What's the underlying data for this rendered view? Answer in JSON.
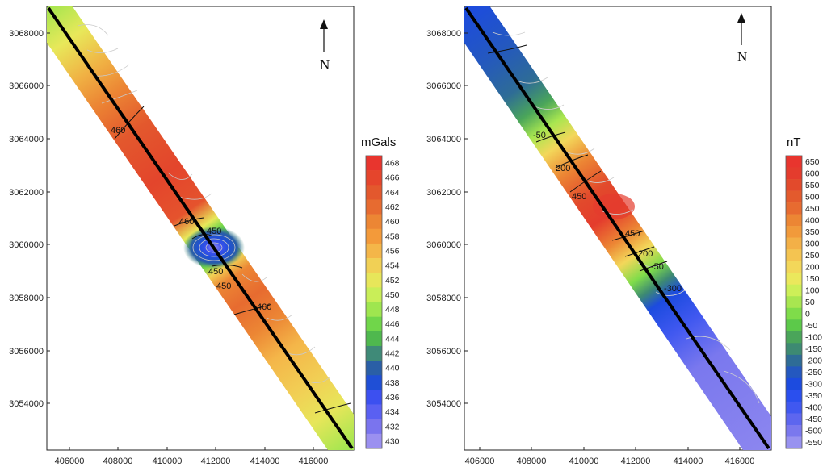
{
  "left_map": {
    "colorbar_unit": "mGals",
    "north_label": "N",
    "x_ticks": [
      "406000",
      "408000",
      "410000",
      "412000",
      "414000",
      "416000"
    ],
    "y_ticks": [
      "3068000",
      "3066000",
      "3064000",
      "3062000",
      "3060000",
      "3058000",
      "3056000",
      "3054000"
    ],
    "colorbar_labels": [
      "468",
      "466",
      "464",
      "462",
      "460",
      "458",
      "456",
      "454",
      "452",
      "450",
      "448",
      "446",
      "444",
      "442",
      "440",
      "438",
      "436",
      "434",
      "432",
      "430"
    ],
    "colorbar_colors": [
      "#e8352e",
      "#e5452c",
      "#e3582d",
      "#e76b30",
      "#ec8634",
      "#f39a3a",
      "#f4b649",
      "#f1d055",
      "#e7e65a",
      "#c9ee58",
      "#9fe64f",
      "#70d64a",
      "#4fb84e",
      "#3f8a78",
      "#2a5fa6",
      "#1f4fd6",
      "#3c50f0",
      "#5a60f2",
      "#7a74ee",
      "#9b90f0"
    ],
    "contour_labels": [
      "460",
      "460",
      "450",
      "450",
      "450",
      "460"
    ]
  },
  "right_map": {
    "colorbar_unit": "nT",
    "north_label": "N",
    "x_ticks": [
      "406000",
      "408000",
      "410000",
      "412000",
      "414000",
      "416000"
    ],
    "y_ticks": [
      "3068000",
      "3066000",
      "3064000",
      "3062000",
      "3060000",
      "3058000",
      "3056000",
      "3054000"
    ],
    "colorbar_labels": [
      "650",
      "600",
      "550",
      "500",
      "450",
      "400",
      "350",
      "300",
      "250",
      "200",
      "150",
      "100",
      "50",
      "0",
      "-50",
      "-100",
      "-150",
      "-200",
      "-250",
      "-300",
      "-350",
      "-400",
      "-450",
      "-500",
      "-550"
    ],
    "colorbar_colors": [
      "#e8352e",
      "#e43c2d",
      "#e24a2c",
      "#e35a2d",
      "#e76b30",
      "#ec8634",
      "#f19a3b",
      "#f3b047",
      "#f4c451",
      "#f3d75a",
      "#ebe85c",
      "#cdef58",
      "#a8e650",
      "#7fdc4a",
      "#5cc94a",
      "#4aa55a",
      "#3d8a72",
      "#2e6c96",
      "#2458bf",
      "#1c4bdf",
      "#2a4fee",
      "#4058f0",
      "#5d66ef",
      "#7a78ee",
      "#9892f0"
    ],
    "contour_labels": [
      "-50",
      "200",
      "450",
      "450",
      "200",
      "-50",
      "-300"
    ]
  }
}
